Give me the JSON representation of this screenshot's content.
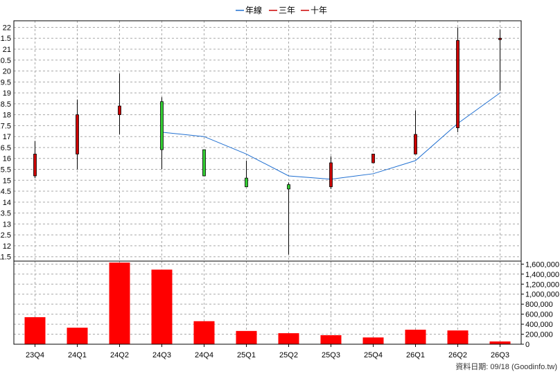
{
  "legend": [
    {
      "label": "年線",
      "color": "#1f6fd1"
    },
    {
      "label": "三年",
      "color": "#cc0000"
    },
    {
      "label": "十年",
      "color": "#cc0000"
    }
  ],
  "footer": {
    "label": "資料日期",
    "date": "09/18",
    "source": "(Goodinfo.tw)"
  },
  "chart_data": [
    {
      "type": "candlestick",
      "categories": [
        "23Q4",
        "24Q1",
        "24Q2",
        "24Q3",
        "24Q4",
        "25Q1",
        "25Q2",
        "25Q3",
        "25Q4",
        "26Q1",
        "26Q2",
        "26Q3"
      ],
      "ohlc": [
        {
          "open": 15.2,
          "high": 16.8,
          "low": 15.1,
          "close": 16.2
        },
        {
          "open": 16.2,
          "high": 18.7,
          "low": 15.5,
          "close": 18.0
        },
        {
          "open": 18.0,
          "high": 19.9,
          "low": 17.1,
          "close": 18.4
        },
        {
          "open": 18.6,
          "high": 18.8,
          "low": 15.5,
          "close": 16.4
        },
        {
          "open": 16.4,
          "high": 16.4,
          "low": 15.2,
          "close": 15.2
        },
        {
          "open": 15.1,
          "high": 15.9,
          "low": 14.7,
          "close": 14.7
        },
        {
          "open": 14.8,
          "high": 14.9,
          "low": 11.6,
          "close": 14.6
        },
        {
          "open": 14.7,
          "high": 16.1,
          "low": 14.6,
          "close": 15.8
        },
        {
          "open": 15.8,
          "high": 16.1,
          "low": 15.8,
          "close": 16.2
        },
        {
          "open": 16.2,
          "high": 18.2,
          "low": 16.2,
          "close": 17.1
        },
        {
          "open": 17.4,
          "high": 22.0,
          "low": 17.2,
          "close": 21.4
        },
        {
          "open": 21.5,
          "high": 21.9,
          "low": 19.1,
          "close": 21.5
        }
      ],
      "up_color": "#cc0000",
      "down_color": "#33cc33",
      "moving_average": {
        "name": "年線",
        "color": "#1f6fd1",
        "start_index": 3,
        "values": [
          17.2,
          17.0,
          16.2,
          15.2,
          15.05,
          15.3,
          15.9,
          17.6,
          19.0
        ]
      },
      "y_ticks": [
        "11.5",
        "12",
        "12.5",
        "13",
        "13.5",
        "14",
        "14.5",
        "15",
        "15.5",
        "16",
        "16.5",
        "17",
        "17.5",
        "18",
        "18.5",
        "19",
        "19.5",
        "20",
        "20.5",
        "21",
        "21.5",
        "22"
      ],
      "ylim": [
        11.3,
        22.3
      ],
      "grid": true
    },
    {
      "type": "bar",
      "categories": [
        "23Q4",
        "24Q1",
        "24Q2",
        "24Q3",
        "24Q4",
        "25Q1",
        "25Q2",
        "25Q3",
        "25Q4",
        "26Q1",
        "26Q2",
        "26Q3"
      ],
      "values": [
        540000,
        330000,
        1630000,
        1490000,
        460000,
        265000,
        220000,
        180000,
        135000,
        290000,
        275000,
        55000
      ],
      "color": "#ff0000",
      "y_ticks": [
        "0",
        "200,000",
        "400,000",
        "600,000",
        "800,000",
        "1,000,000",
        "1,200,000",
        "1,400,000",
        "1,600,000"
      ],
      "ylim": [
        0,
        1660000
      ],
      "grid": true
    }
  ]
}
